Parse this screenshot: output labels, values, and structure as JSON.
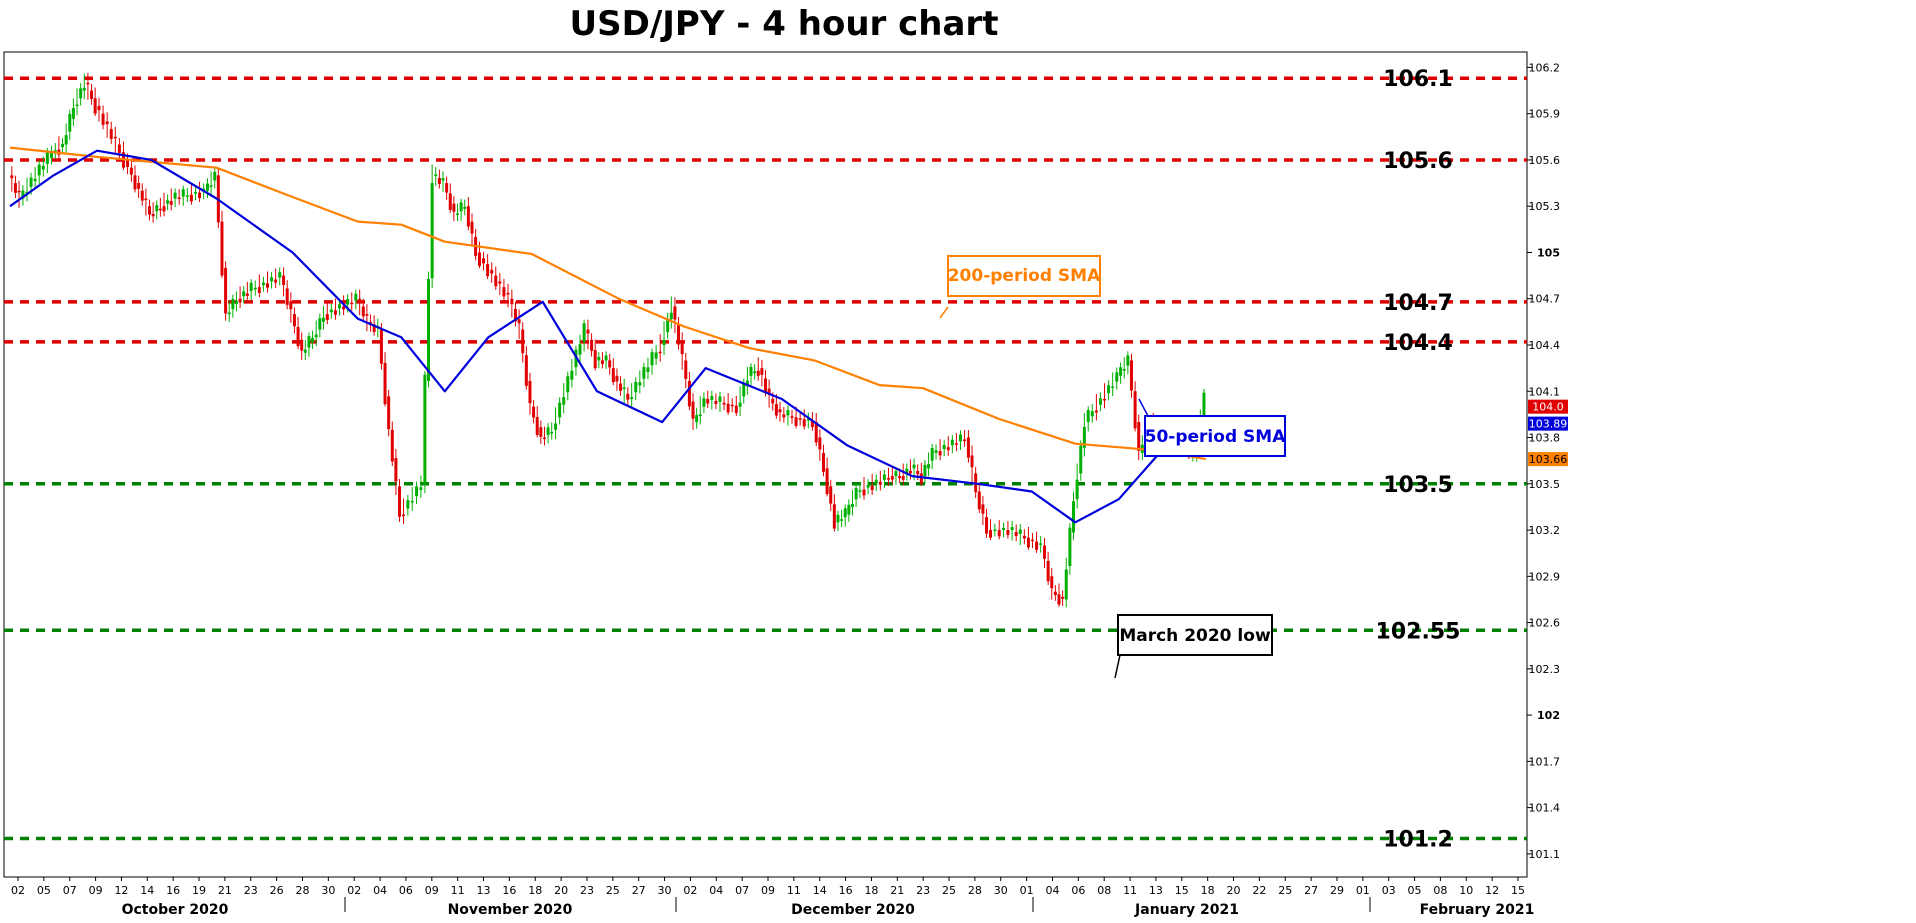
{
  "chart_data": {
    "type": "line",
    "title": "USD/JPY - 4 hour chart",
    "ylim": [
      100.95,
      106.3
    ],
    "y_ticks": [
      {
        "label": "106.2",
        "value": 106.2
      },
      {
        "label": "105.9",
        "value": 105.9
      },
      {
        "label": "105.6",
        "value": 105.6
      },
      {
        "label": "105.3",
        "value": 105.3
      },
      {
        "label": "105",
        "value": 105.0,
        "bold": true
      },
      {
        "label": "104.7",
        "value": 104.7
      },
      {
        "label": "104.4",
        "value": 104.4
      },
      {
        "label": "104.1",
        "value": 104.1
      },
      {
        "label": "103.8",
        "value": 103.8
      },
      {
        "label": "103.5",
        "value": 103.5
      },
      {
        "label": "103.2",
        "value": 103.2
      },
      {
        "label": "102.9",
        "value": 102.9
      },
      {
        "label": "102.6",
        "value": 102.6
      },
      {
        "label": "102.3",
        "value": 102.3
      },
      {
        "label": "102",
        "value": 102.0,
        "bold": true
      },
      {
        "label": "101.7",
        "value": 101.7
      },
      {
        "label": "101.4",
        "value": 101.4
      },
      {
        "label": "101.1",
        "value": 101.1
      }
    ],
    "x_ticks": [
      "02",
      "05",
      "07",
      "09",
      "12",
      "14",
      "16",
      "19",
      "21",
      "23",
      "26",
      "28",
      "30",
      "02",
      "04",
      "06",
      "09",
      "11",
      "13",
      "16",
      "18",
      "20",
      "23",
      "25",
      "27",
      "30",
      "02",
      "04",
      "07",
      "09",
      "11",
      "14",
      "16",
      "18",
      "21",
      "23",
      "25",
      "28",
      "30",
      "01",
      "04",
      "06",
      "08",
      "11",
      "13",
      "15",
      "18",
      "20",
      "22",
      "25",
      "27",
      "29",
      "01",
      "03",
      "05",
      "08",
      "10",
      "12",
      "15"
    ],
    "months": [
      "October 2020",
      "November 2020",
      "December 2020",
      "January 2021",
      "February 2021"
    ],
    "levels": [
      {
        "label": "106.1",
        "value": 106.13,
        "color": "#e00000",
        "kind": "resistance"
      },
      {
        "label": "105.6",
        "value": 105.6,
        "color": "#e00000",
        "kind": "resistance"
      },
      {
        "label": "104.7",
        "value": 104.68,
        "color": "#e00000",
        "kind": "resistance"
      },
      {
        "label": "104.4",
        "value": 104.42,
        "color": "#e00000",
        "kind": "resistance"
      },
      {
        "label": "103.5",
        "value": 103.5,
        "color": "#008000",
        "kind": "support"
      },
      {
        "label": "102.55",
        "value": 102.55,
        "color": "#008000",
        "kind": "support"
      },
      {
        "label": "101.2",
        "value": 101.2,
        "color": "#008000",
        "kind": "support"
      }
    ],
    "series": [
      {
        "name": "200-period SMA",
        "color": "#ff8000",
        "x": [
          "2020-10-01",
          "2020-10-09",
          "2020-10-20",
          "2020-10-27",
          "2020-11-02",
          "2020-11-06",
          "2020-11-10",
          "2020-11-18",
          "2020-11-26",
          "2020-12-02",
          "2020-12-08",
          "2020-12-14",
          "2020-12-20",
          "2020-12-24",
          "2020-12-31",
          "2021-01-07",
          "2021-01-14",
          "2021-01-19"
        ],
        "values": [
          105.68,
          105.62,
          105.55,
          105.36,
          105.2,
          105.18,
          105.07,
          104.99,
          104.7,
          104.52,
          104.38,
          104.3,
          104.14,
          104.12,
          103.92,
          103.76,
          103.72,
          103.66
        ]
      },
      {
        "name": "50-period SMA",
        "color": "#0000dd",
        "x": [
          "2020-10-01",
          "2020-10-05",
          "2020-10-09",
          "2020-10-14",
          "2020-10-20",
          "2020-10-27",
          "2020-11-02",
          "2020-11-06",
          "2020-11-10",
          "2020-11-14",
          "2020-11-19",
          "2020-11-24",
          "2020-11-30",
          "2020-12-04",
          "2020-12-11",
          "2020-12-17",
          "2020-12-23",
          "2020-12-29",
          "2021-01-03",
          "2021-01-07",
          "2021-01-11",
          "2021-01-15",
          "2021-01-19"
        ],
        "values": [
          105.3,
          105.5,
          105.66,
          105.6,
          105.35,
          105.0,
          104.57,
          104.45,
          104.1,
          104.45,
          104.68,
          104.1,
          103.9,
          104.25,
          104.05,
          103.75,
          103.55,
          103.5,
          103.45,
          103.25,
          103.4,
          103.72,
          103.9
        ]
      }
    ],
    "price": {
      "x": [
        "2020-10-01",
        "2020-10-02",
        "2020-10-05",
        "2020-10-06",
        "2020-10-07",
        "2020-10-08",
        "2020-10-09",
        "2020-10-12",
        "2020-10-13",
        "2020-10-14",
        "2020-10-15",
        "2020-10-16",
        "2020-10-19",
        "2020-10-20",
        "2020-10-21",
        "2020-10-22",
        "2020-10-23",
        "2020-10-26",
        "2020-10-27",
        "2020-10-28",
        "2020-10-29",
        "2020-10-30",
        "2020-11-02",
        "2020-11-03",
        "2020-11-04",
        "2020-11-05",
        "2020-11-06",
        "2020-11-08",
        "2020-11-09",
        "2020-11-10",
        "2020-11-11",
        "2020-11-12",
        "2020-11-13",
        "2020-11-16",
        "2020-11-17",
        "2020-11-18",
        "2020-11-19",
        "2020-11-20",
        "2020-11-23",
        "2020-11-24",
        "2020-11-25",
        "2020-11-26",
        "2020-11-27",
        "2020-11-30",
        "2020-12-01",
        "2020-12-02",
        "2020-12-03",
        "2020-12-04",
        "2020-12-07",
        "2020-12-08",
        "2020-12-09",
        "2020-12-10",
        "2020-12-11",
        "2020-12-14",
        "2020-12-15",
        "2020-12-16",
        "2020-12-17",
        "2020-12-18",
        "2020-12-21",
        "2020-12-22",
        "2020-12-23",
        "2020-12-24",
        "2020-12-25",
        "2020-12-28",
        "2020-12-29",
        "2020-12-30",
        "2021-01-01",
        "2021-01-04",
        "2021-01-05",
        "2021-01-06",
        "2021-01-07",
        "2021-01-08",
        "2021-01-11",
        "2021-01-12",
        "2021-01-13",
        "2021-01-14",
        "2021-01-15",
        "2021-01-18",
        "2021-01-19"
      ],
      "values": [
        105.5,
        105.35,
        105.65,
        105.7,
        105.95,
        106.1,
        105.95,
        105.55,
        105.4,
        105.25,
        105.3,
        105.35,
        105.4,
        105.5,
        104.6,
        104.7,
        104.75,
        104.85,
        104.6,
        104.35,
        104.45,
        104.6,
        104.7,
        104.55,
        104.5,
        103.85,
        103.3,
        103.5,
        105.5,
        105.45,
        105.25,
        105.3,
        105.0,
        104.7,
        104.5,
        104.0,
        103.8,
        103.85,
        104.5,
        104.3,
        104.3,
        104.15,
        104.05,
        104.4,
        104.65,
        104.3,
        103.9,
        104.05,
        104.0,
        104.2,
        104.25,
        104.05,
        103.95,
        103.9,
        103.6,
        103.25,
        103.3,
        103.45,
        103.55,
        103.55,
        103.6,
        103.55,
        103.7,
        103.8,
        103.45,
        103.2,
        103.2,
        103.1,
        102.8,
        102.75,
        103.4,
        103.9,
        104.2,
        104.3,
        103.7,
        103.9,
        103.8,
        103.7,
        104.05
      ]
    },
    "price_labels": [
      {
        "label": "104.0",
        "color": "#e00000"
      },
      {
        "label": "103.89",
        "color": "#0000dd"
      },
      {
        "label": "103.66",
        "color": "#ff8000"
      }
    ],
    "annotations": [
      "200-period SMA",
      "50-period SMA",
      "March 2020 low"
    ]
  }
}
